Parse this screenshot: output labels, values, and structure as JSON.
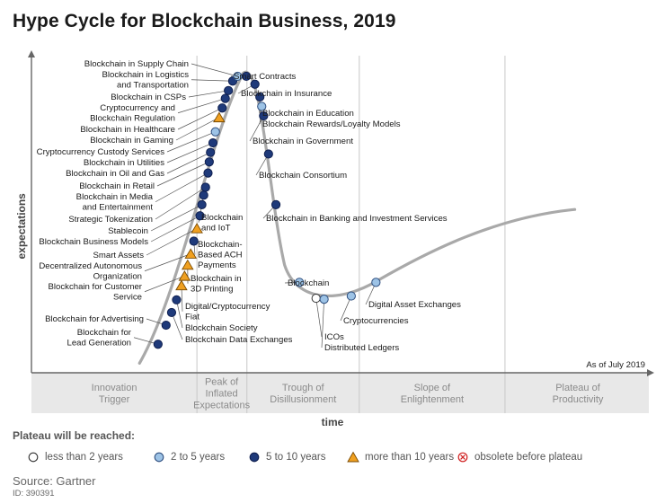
{
  "title": "Hype Cycle for Blockchain Business, 2019",
  "chart_data": {
    "type": "scatter",
    "title": "Hype Cycle for Blockchain Business, 2019",
    "xlabel": "time",
    "ylabel": "expectations",
    "as_of": "As of July 2019",
    "phases": [
      [
        "Innovation",
        "Trigger"
      ],
      [
        "Peak of",
        "Inflated",
        "Expectations"
      ],
      [
        "Trough of",
        "Disillusionment"
      ],
      [
        "Slope of",
        "Enlightenment"
      ],
      [
        "Plateau of",
        "Productivity"
      ]
    ],
    "technologies": [
      {
        "name": "Blockchain for Lead Generation",
        "lines": [
          "Blockchain for",
          "Lead Generation"
        ],
        "category": "5-10",
        "t": 0.205,
        "e": 0.09
      },
      {
        "name": "Blockchain for Advertising",
        "lines": [
          "Blockchain for Advertising"
        ],
        "category": "5-10",
        "t": 0.218,
        "e": 0.15
      },
      {
        "name": "Blockchain Data Exchanges",
        "lines": [
          "Blockchain Data Exchanges"
        ],
        "category": "5-10",
        "t": 0.227,
        "e": 0.19
      },
      {
        "name": "Blockchain Society",
        "lines": [
          "Blockchain Society"
        ],
        "category": "5-10",
        "t": 0.235,
        "e": 0.23
      },
      {
        "name": "Digital/Cryptocurrency Fiat",
        "lines": [
          "Digital/Cryptocurrency",
          "Fiat"
        ],
        "category": ">10",
        "t": 0.243,
        "e": 0.275
      },
      {
        "name": "Blockchain for Customer Service",
        "lines": [
          "Blockchain for Customer",
          "Service"
        ],
        "category": ">10",
        "t": 0.248,
        "e": 0.305
      },
      {
        "name": "Blockchain in 3D Printing",
        "lines": [
          "Blockchain in",
          "3D Printing"
        ],
        "category": ">10",
        "t": 0.253,
        "e": 0.34
      },
      {
        "name": "Decentralized Autonomous Organization",
        "lines": [
          "Decentralized Autonomous",
          "Organization"
        ],
        "category": ">10",
        "t": 0.258,
        "e": 0.375
      },
      {
        "name": "Blockchain-Based ACH Payments",
        "lines": [
          "Blockchain-",
          "Based ACH",
          "Payments"
        ],
        "category": "5-10",
        "t": 0.263,
        "e": 0.415
      },
      {
        "name": "Smart Assets",
        "lines": [
          "Smart Assets"
        ],
        "category": ">10",
        "t": 0.268,
        "e": 0.455
      },
      {
        "name": "Blockchain Business Models",
        "lines": [
          "Blockchain Business Models"
        ],
        "category": "5-10",
        "t": 0.273,
        "e": 0.495
      },
      {
        "name": "Stablecoin",
        "lines": [
          "Stablecoin"
        ],
        "category": "5-10",
        "t": 0.276,
        "e": 0.53
      },
      {
        "name": "Blockchain and IoT",
        "lines": [
          "Blockchain",
          "and IoT"
        ],
        "category": "5-10",
        "t": 0.279,
        "e": 0.56
      },
      {
        "name": "Strategic Tokenization",
        "lines": [
          "Strategic Tokenization"
        ],
        "category": "5-10",
        "t": 0.282,
        "e": 0.585
      },
      {
        "name": "Blockchain in Media and Entertainment",
        "lines": [
          "Blockchain in Media",
          "and Entertainment"
        ],
        "category": "5-10",
        "t": 0.286,
        "e": 0.63
      },
      {
        "name": "Blockchain in Retail",
        "lines": [
          "Blockchain in Retail"
        ],
        "category": "5-10",
        "t": 0.288,
        "e": 0.665
      },
      {
        "name": "Blockchain in Oil and Gas",
        "lines": [
          "Blockchain in Oil and Gas"
        ],
        "category": "5-10",
        "t": 0.29,
        "e": 0.695
      },
      {
        "name": "Blockchain in Utilities",
        "lines": [
          "Blockchain in Utilities"
        ],
        "category": "5-10",
        "t": 0.294,
        "e": 0.725
      },
      {
        "name": "Cryptocurrency Custody Services",
        "lines": [
          "Cryptocurrency Custody Services"
        ],
        "category": "2-5",
        "t": 0.298,
        "e": 0.76
      },
      {
        "name": "Blockchain in Gaming",
        "lines": [
          "Blockchain in Gaming"
        ],
        "category": ">10",
        "t": 0.304,
        "e": 0.805
      },
      {
        "name": "Blockchain in Healthcare",
        "lines": [
          "Blockchain in Healthcare"
        ],
        "category": "5-10",
        "t": 0.309,
        "e": 0.835
      },
      {
        "name": "Cryptocurrency and Blockchain Regulation",
        "lines": [
          "Cryptocurrency and",
          "Blockchain Regulation"
        ],
        "category": "5-10",
        "t": 0.314,
        "e": 0.865
      },
      {
        "name": "Blockchain in CSPs",
        "lines": [
          "Blockchain in CSPs"
        ],
        "category": "5-10",
        "t": 0.319,
        "e": 0.89
      },
      {
        "name": "Blockchain in Logistics and Transportation",
        "lines": [
          "Blockchain in Logistics",
          "and Transportation"
        ],
        "category": "5-10",
        "t": 0.326,
        "e": 0.92
      },
      {
        "name": "Blockchain in Supply Chain",
        "lines": [
          "Blockchain in Supply Chain"
        ],
        "category": "2-5",
        "t": 0.334,
        "e": 0.935
      },
      {
        "name": "Smart Contracts",
        "lines": [
          "Smart Contracts"
        ],
        "category": "5-10",
        "t": 0.348,
        "e": 0.935
      },
      {
        "name": "Blockchain in Insurance",
        "lines": [
          "Blockchain in Insurance"
        ],
        "category": "5-10",
        "t": 0.362,
        "e": 0.91
      },
      {
        "name": "Blockchain in Education",
        "lines": [
          "Blockchain in Education"
        ],
        "category": "5-10",
        "t": 0.37,
        "e": 0.87
      },
      {
        "name": "Blockchain Rewards/Loyalty Models",
        "lines": [
          "Blockchain Rewards/Loyalty Models"
        ],
        "category": "2-5",
        "t": 0.373,
        "e": 0.84
      },
      {
        "name": "Blockchain in Government",
        "lines": [
          "Blockchain in Government"
        ],
        "category": "5-10",
        "t": 0.376,
        "e": 0.81
      },
      {
        "name": "Blockchain Consortium",
        "lines": [
          "Blockchain Consortium"
        ],
        "category": "5-10",
        "t": 0.384,
        "e": 0.69
      },
      {
        "name": "Blockchain in Banking and Investment Services",
        "lines": [
          "Blockchain in Banking and Investment Services"
        ],
        "category": "5-10",
        "t": 0.396,
        "e": 0.53
      },
      {
        "name": "Blockchain",
        "lines": [
          "Blockchain"
        ],
        "category": "2-5",
        "t": 0.434,
        "e": 0.285
      },
      {
        "name": "ICOs",
        "lines": [
          "ICOs"
        ],
        "category": "<2",
        "t": 0.461,
        "e": 0.235
      },
      {
        "name": "Distributed Ledgers",
        "lines": [
          "Distributed Ledgers"
        ],
        "category": "2-5",
        "t": 0.474,
        "e": 0.232
      },
      {
        "name": "Cryptocurrencies",
        "lines": [
          "Cryptocurrencies"
        ],
        "category": "2-5",
        "t": 0.518,
        "e": 0.242
      },
      {
        "name": "Digital Asset Exchanges",
        "lines": [
          "Digital Asset Exchanges"
        ],
        "category": "2-5",
        "t": 0.558,
        "e": 0.285
      }
    ],
    "legend": {
      "title": "Plateau will be reached:",
      "items": [
        {
          "key": "<2",
          "label": "less than 2 years",
          "shape": "circle",
          "fill": "#ffffff",
          "stroke": "#333333"
        },
        {
          "key": "2-5",
          "label": "2 to 5 years",
          "shape": "circle",
          "fill": "#9dc3e6",
          "stroke": "#2f4f7f"
        },
        {
          "key": "5-10",
          "label": "5 to 10 years",
          "shape": "circle",
          "fill": "#1f3a7a",
          "stroke": "#0f1f4f"
        },
        {
          "key": ">10",
          "label": "more than 10 years",
          "shape": "triangle",
          "fill": "#f0a020",
          "stroke": "#7a4a00"
        },
        {
          "key": "obsolete",
          "label": "obsolete before plateau",
          "shape": "x-circle",
          "fill": "#ffffff",
          "stroke": "#d02020"
        }
      ]
    }
  },
  "source": "Source: Gartner",
  "doc_id": "ID: 390391"
}
